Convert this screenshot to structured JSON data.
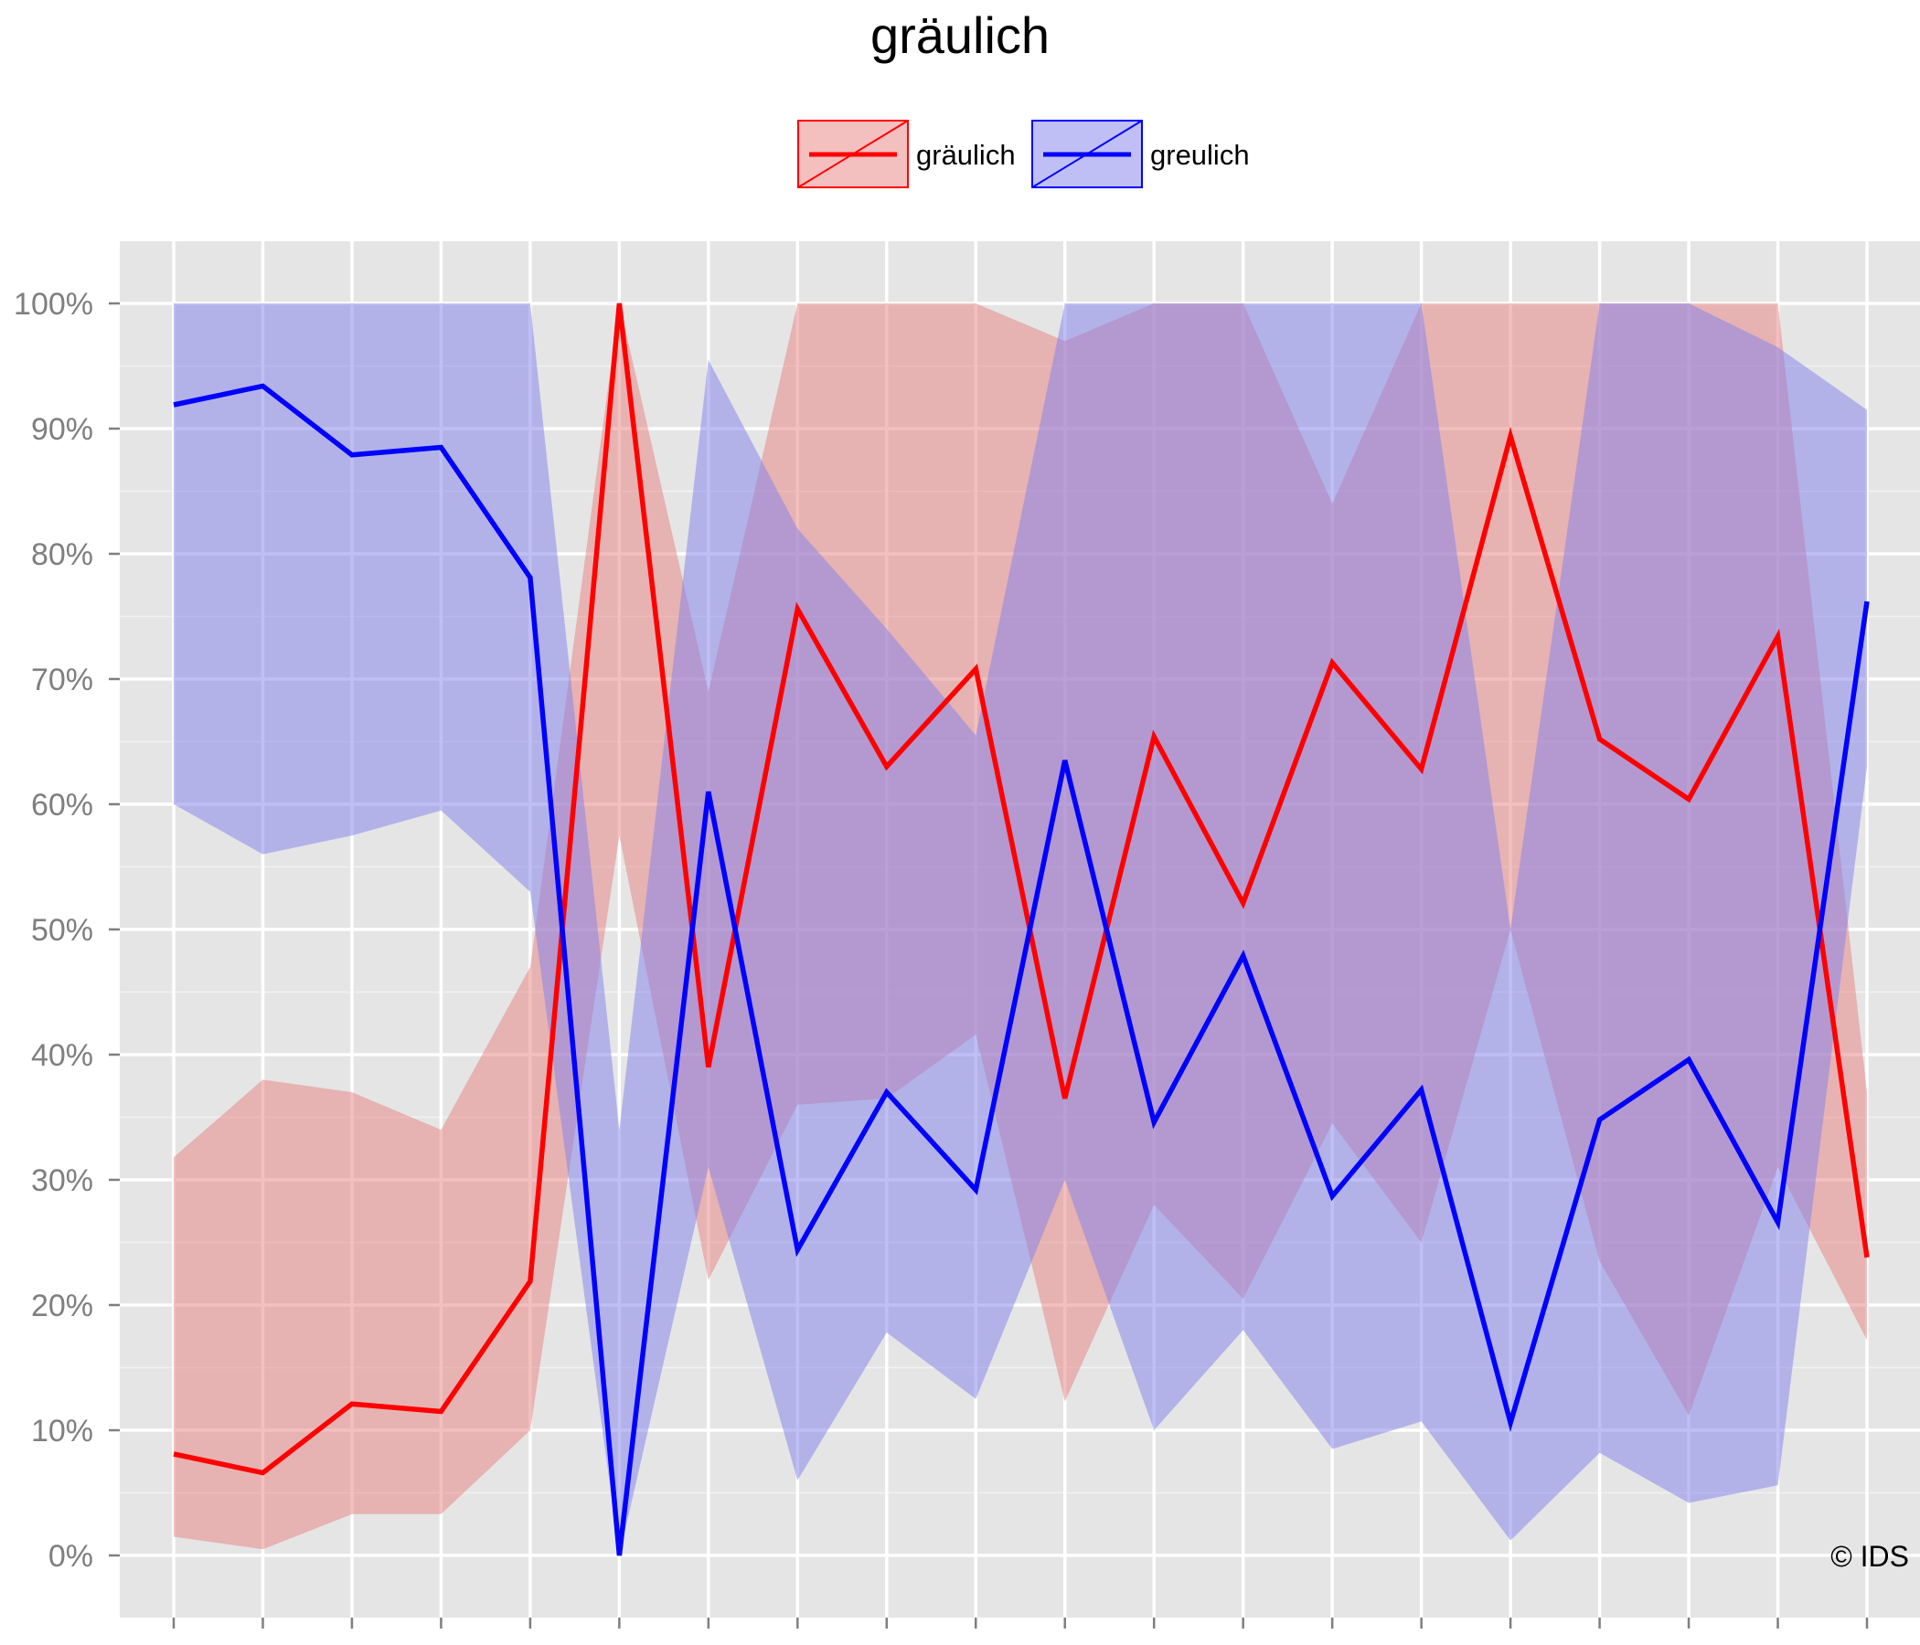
{
  "chart_data": {
    "type": "line",
    "title": "gräulich",
    "xlabel": "",
    "ylabel": "",
    "ylim": [
      0,
      1
    ],
    "yticks": [
      0,
      0.1,
      0.2,
      0.3,
      0.4,
      0.5,
      0.6,
      0.7,
      0.8,
      0.9,
      1.0
    ],
    "ytick_labels": [
      "0%",
      "10%",
      "20%",
      "30%",
      "40%",
      "50%",
      "60%",
      "70%",
      "80%",
      "90%",
      "100%"
    ],
    "x": [
      1,
      2,
      3,
      4,
      5,
      6,
      7,
      8,
      9,
      10,
      11,
      12,
      13,
      14,
      15,
      16,
      17,
      18,
      19,
      20
    ],
    "xlim": [
      0.4,
      20.6
    ],
    "legend_position": "top",
    "series": [
      {
        "name": "gräulich",
        "color": "#ff0000",
        "ribbon_color": "#e88080",
        "values": [
          0.081,
          0.066,
          0.121,
          0.115,
          0.219,
          1.0,
          0.39,
          0.756,
          0.63,
          0.708,
          0.365,
          0.654,
          0.521,
          0.713,
          0.628,
          0.894,
          0.652,
          0.604,
          0.734,
          0.238
        ],
        "lower": [
          0.015,
          0.005,
          0.033,
          0.033,
          0.1,
          0.575,
          0.22,
          0.36,
          0.365,
          0.416,
          0.123,
          0.28,
          0.205,
          0.345,
          0.25,
          0.5,
          0.235,
          0.112,
          0.31,
          0.172
        ],
        "upper": [
          0.318,
          0.38,
          0.37,
          0.34,
          0.47,
          1.0,
          0.69,
          1.0,
          1.0,
          1.0,
          0.97,
          1.0,
          1.0,
          0.84,
          1.0,
          1.0,
          1.0,
          1.0,
          1.0,
          0.37
        ]
      },
      {
        "name": "greulich",
        "color": "#0000ff",
        "ribbon_color": "#8080ee",
        "values": [
          0.919,
          0.934,
          0.879,
          0.885,
          0.781,
          0.0,
          0.61,
          0.244,
          0.37,
          0.292,
          0.635,
          0.346,
          0.479,
          0.287,
          0.372,
          0.106,
          0.348,
          0.396,
          0.266,
          0.762
        ],
        "lower": [
          0.6,
          0.56,
          0.575,
          0.595,
          0.53,
          0.0,
          0.31,
          0.06,
          0.178,
          0.125,
          0.3,
          0.1,
          0.18,
          0.085,
          0.107,
          0.012,
          0.082,
          0.042,
          0.056,
          0.63
        ],
        "upper": [
          1.0,
          1.0,
          1.0,
          1.0,
          1.0,
          0.34,
          0.955,
          0.82,
          0.74,
          0.655,
          1.0,
          1.0,
          1.0,
          1.0,
          1.0,
          0.5,
          1.0,
          1.0,
          0.965,
          0.915
        ]
      }
    ],
    "annotation": "© IDS"
  }
}
